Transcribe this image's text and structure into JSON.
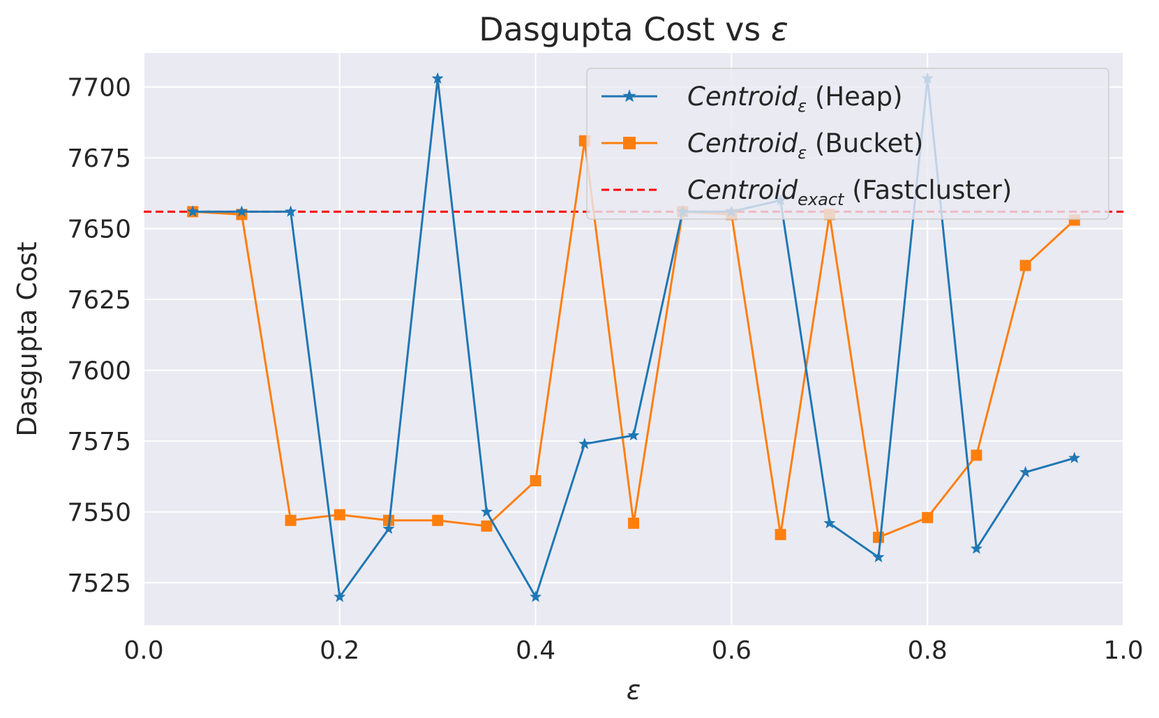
{
  "chart_data": {
    "type": "line",
    "title": "Dasgupta Cost vs ",
    "title_symbol": "ε",
    "xlabel": "ε",
    "ylabel": "Dasgupta Cost",
    "xlim": [
      0.0,
      1.0
    ],
    "ylim": [
      7510,
      7712
    ],
    "x_ticks": [
      0.0,
      0.2,
      0.4,
      0.6,
      0.8,
      1.0
    ],
    "x_tick_labels": [
      "0.0",
      "0.2",
      "0.4",
      "0.6",
      "0.8",
      "1.0"
    ],
    "y_ticks": [
      7525,
      7550,
      7575,
      7600,
      7625,
      7650,
      7675,
      7700
    ],
    "y_tick_labels": [
      "7525",
      "7550",
      "7575",
      "7600",
      "7625",
      "7650",
      "7675",
      "7700"
    ],
    "grid": true,
    "legend_position": "top-right",
    "series": [
      {
        "name": "Centroidε (Heap)",
        "legend_main": "Centroid",
        "legend_sub": "ε",
        "legend_suffix": " (Heap)",
        "color": "#1f77b4",
        "marker": "star",
        "x": [
          0.05,
          0.1,
          0.15,
          0.2,
          0.25,
          0.3,
          0.35,
          0.4,
          0.45,
          0.5,
          0.55,
          0.6,
          0.65,
          0.7,
          0.75,
          0.8,
          0.85,
          0.9,
          0.95
        ],
        "values": [
          7656,
          7656,
          7656,
          7520,
          7544,
          7703,
          7550,
          7520,
          7574,
          7577,
          7656,
          7656,
          7660,
          7546,
          7534,
          7703,
          7537,
          7564,
          7569
        ]
      },
      {
        "name": "Centroidε (Bucket)",
        "legend_main": "Centroid",
        "legend_sub": "ε",
        "legend_suffix": " (Bucket)",
        "color": "#ff7f0e",
        "marker": "square",
        "x": [
          0.05,
          0.1,
          0.15,
          0.2,
          0.25,
          0.3,
          0.35,
          0.4,
          0.45,
          0.5,
          0.55,
          0.6,
          0.65,
          0.7,
          0.75,
          0.8,
          0.85,
          0.9,
          0.95
        ],
        "values": [
          7656,
          7655,
          7547,
          7549,
          7547,
          7547,
          7545,
          7561,
          7681,
          7546,
          7656,
          7655,
          7542,
          7655,
          7541,
          7548,
          7570,
          7637,
          7653
        ]
      }
    ],
    "reference_line": {
      "name": "Centroidexact (Fastcluster)",
      "legend_main": "Centroid",
      "legend_sub": "exact",
      "legend_suffix": " (Fastcluster)",
      "color": "#ff0000",
      "value": 7656
    }
  }
}
